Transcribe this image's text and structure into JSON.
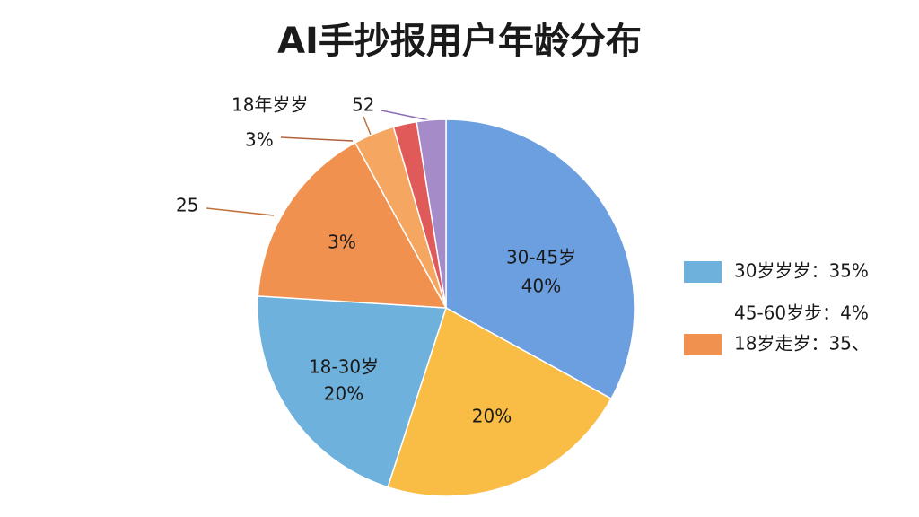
{
  "chart_data": {
    "type": "pie",
    "title": "AI手抄报用户年龄分布",
    "categories": [
      "30-45岁",
      null,
      "18-30岁",
      null,
      null,
      null,
      null
    ],
    "values": [
      33,
      22,
      21,
      16,
      3.5,
      2,
      2.5
    ],
    "colors": [
      "#6b9fe0",
      "#f9bd45",
      "#6eb1dc",
      "#f0914f",
      "#f5a762",
      "#e05a5a",
      "#a68bc9"
    ],
    "annotations": [
      "40%",
      "20%",
      "20%",
      "3%",
      "18年岁岁",
      "52",
      "3%",
      "25"
    ],
    "legend": [
      {
        "label": "30岁岁岁：35%",
        "color": "#6eb1dc"
      },
      {
        "label": "45-60岁步：4%"
      },
      {
        "label": "18岁走岁：35、",
        "color": "#f0914f"
      }
    ]
  }
}
